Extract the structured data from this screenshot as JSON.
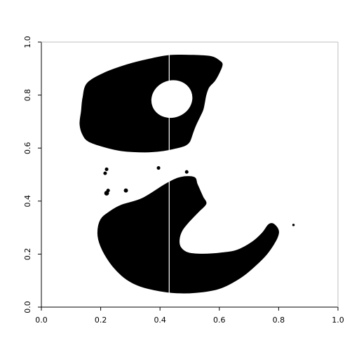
{
  "chart_data": {
    "type": "image",
    "title": "",
    "xlabel": "",
    "ylabel": "",
    "xlim": [
      0,
      1
    ],
    "ylim": [
      0,
      1
    ],
    "x_ticks": [
      0.0,
      0.2,
      0.4,
      0.6,
      0.8,
      1.0
    ],
    "x_tick_labels": [
      "0.0",
      "0.2",
      "0.4",
      "0.6",
      "0.8",
      "1.0"
    ],
    "y_ticks": [
      0.0,
      0.2,
      0.4,
      0.6,
      0.8,
      1.0
    ],
    "y_tick_labels": [
      "0.0",
      "0.2",
      "0.4",
      "0.6",
      "0.8",
      "1.0"
    ],
    "grid": false,
    "colors": {
      "foreground": "#000000",
      "background": "#ffffff",
      "axis": "#000000"
    },
    "vertical_gap_line_x": 0.431,
    "regions": [
      {
        "name": "upper-blob",
        "points": [
          [
            0.155,
            0.845
          ],
          [
            0.215,
            0.885
          ],
          [
            0.29,
            0.915
          ],
          [
            0.36,
            0.935
          ],
          [
            0.435,
            0.95
          ],
          [
            0.52,
            0.95
          ],
          [
            0.575,
            0.945
          ],
          [
            0.6,
            0.93
          ],
          [
            0.61,
            0.915
          ],
          [
            0.6,
            0.885
          ],
          [
            0.585,
            0.855
          ],
          [
            0.565,
            0.83
          ],
          [
            0.555,
            0.8
          ],
          [
            0.55,
            0.77
          ],
          [
            0.545,
            0.745
          ],
          [
            0.535,
            0.72
          ],
          [
            0.52,
            0.685
          ],
          [
            0.51,
            0.655
          ],
          [
            0.5,
            0.625
          ],
          [
            0.485,
            0.61
          ],
          [
            0.455,
            0.6
          ],
          [
            0.41,
            0.59
          ],
          [
            0.35,
            0.585
          ],
          [
            0.27,
            0.59
          ],
          [
            0.21,
            0.605
          ],
          [
            0.16,
            0.625
          ],
          [
            0.14,
            0.65
          ],
          [
            0.13,
            0.69
          ],
          [
            0.135,
            0.74
          ],
          [
            0.14,
            0.79
          ],
          [
            0.155,
            0.845
          ]
        ]
      },
      {
        "name": "lower-blob",
        "points": [
          [
            0.27,
            0.385
          ],
          [
            0.34,
            0.41
          ],
          [
            0.42,
            0.465
          ],
          [
            0.47,
            0.49
          ],
          [
            0.515,
            0.49
          ],
          [
            0.525,
            0.465
          ],
          [
            0.535,
            0.44
          ],
          [
            0.545,
            0.415
          ],
          [
            0.555,
            0.39
          ],
          [
            0.53,
            0.36
          ],
          [
            0.5,
            0.325
          ],
          [
            0.475,
            0.29
          ],
          [
            0.465,
            0.255
          ],
          [
            0.47,
            0.225
          ],
          [
            0.495,
            0.205
          ],
          [
            0.545,
            0.2
          ],
          [
            0.61,
            0.205
          ],
          [
            0.66,
            0.215
          ],
          [
            0.71,
            0.245
          ],
          [
            0.745,
            0.28
          ],
          [
            0.765,
            0.31
          ],
          [
            0.78,
            0.315
          ],
          [
            0.795,
            0.3
          ],
          [
            0.8,
            0.28
          ],
          [
            0.79,
            0.25
          ],
          [
            0.76,
            0.2
          ],
          [
            0.72,
            0.155
          ],
          [
            0.67,
            0.11
          ],
          [
            0.6,
            0.07
          ],
          [
            0.52,
            0.055
          ],
          [
            0.44,
            0.055
          ],
          [
            0.36,
            0.07
          ],
          [
            0.31,
            0.09
          ],
          [
            0.27,
            0.12
          ],
          [
            0.23,
            0.17
          ],
          [
            0.2,
            0.23
          ],
          [
            0.19,
            0.28
          ],
          [
            0.2,
            0.33
          ],
          [
            0.23,
            0.36
          ],
          [
            0.27,
            0.385
          ]
        ]
      }
    ],
    "holes": [
      {
        "name": "upper-hole",
        "cx": 0.44,
        "cy": 0.785,
        "rx": 0.07,
        "ry": 0.07
      }
    ],
    "specks": [
      {
        "name": "speck",
        "x": 0.215,
        "y": 0.505,
        "r": 0.006
      },
      {
        "name": "speck",
        "x": 0.22,
        "y": 0.52,
        "r": 0.006
      },
      {
        "name": "speck",
        "x": 0.22,
        "y": 0.43,
        "r": 0.008
      },
      {
        "name": "speck",
        "x": 0.225,
        "y": 0.44,
        "r": 0.006
      },
      {
        "name": "speck",
        "x": 0.285,
        "y": 0.44,
        "r": 0.007
      },
      {
        "name": "speck",
        "x": 0.395,
        "y": 0.525,
        "r": 0.006
      },
      {
        "name": "speck",
        "x": 0.49,
        "y": 0.51,
        "r": 0.006
      },
      {
        "name": "speck",
        "x": 0.505,
        "y": 0.48,
        "r": 0.005
      },
      {
        "name": "speck",
        "x": 0.85,
        "y": 0.31,
        "r": 0.004
      }
    ]
  }
}
